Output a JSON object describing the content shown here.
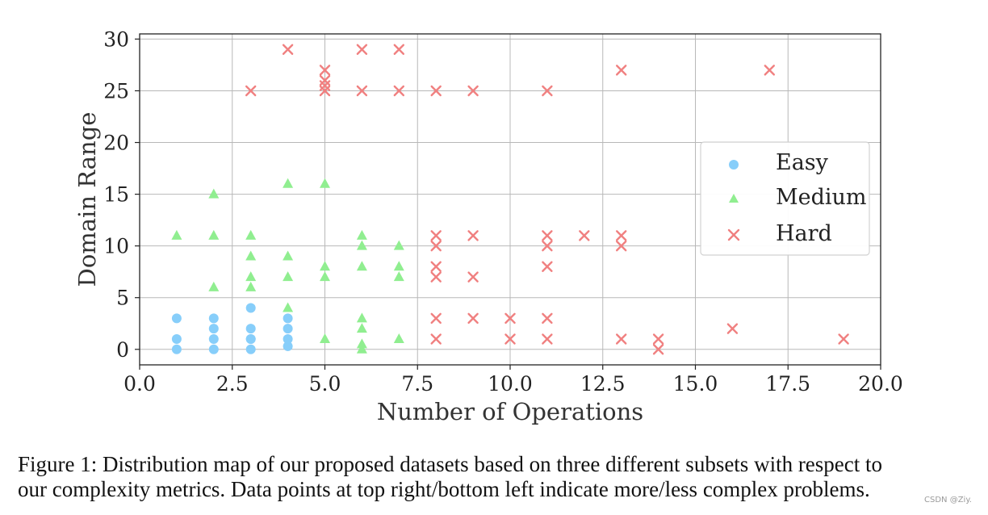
{
  "chart_data": {
    "type": "scatter",
    "xlabel": "Number of Operations",
    "ylabel": "Domain Range",
    "xlim": [
      0,
      20
    ],
    "ylim": [
      -1.5,
      30.5
    ],
    "xticks": [
      "0.0",
      "2.5",
      "5.0",
      "7.5",
      "10.0",
      "12.5",
      "15.0",
      "17.5",
      "20.0"
    ],
    "yticks": [
      "0",
      "5",
      "10",
      "15",
      "20",
      "25",
      "30"
    ],
    "grid": true,
    "legend_position": "center-right",
    "series": [
      {
        "name": "Easy",
        "marker": "circle",
        "color": "#87cefa",
        "points": [
          [
            1,
            0
          ],
          [
            1,
            1
          ],
          [
            1,
            3
          ],
          [
            2,
            0
          ],
          [
            2,
            1
          ],
          [
            2,
            2
          ],
          [
            2,
            3
          ],
          [
            3,
            0
          ],
          [
            3,
            1
          ],
          [
            3,
            1
          ],
          [
            3,
            2
          ],
          [
            3,
            4
          ],
          [
            4,
            0.3
          ],
          [
            4,
            1
          ],
          [
            4,
            2
          ],
          [
            4,
            3
          ]
        ]
      },
      {
        "name": "Medium",
        "marker": "triangle",
        "color": "#90ee90",
        "points": [
          [
            1,
            11
          ],
          [
            2,
            15
          ],
          [
            2,
            11
          ],
          [
            2,
            6
          ],
          [
            3,
            11
          ],
          [
            3,
            9
          ],
          [
            3,
            7
          ],
          [
            3,
            6
          ],
          [
            4,
            16
          ],
          [
            4,
            9
          ],
          [
            4,
            7
          ],
          [
            4,
            4
          ],
          [
            5,
            16
          ],
          [
            5,
            8
          ],
          [
            5,
            7
          ],
          [
            5,
            1
          ],
          [
            6,
            11
          ],
          [
            6,
            10
          ],
          [
            6,
            8
          ],
          [
            6,
            3
          ],
          [
            6,
            2
          ],
          [
            6,
            0.5
          ],
          [
            6,
            0
          ],
          [
            7,
            10
          ],
          [
            7,
            8
          ],
          [
            7,
            7
          ],
          [
            7,
            1
          ]
        ]
      },
      {
        "name": "Hard",
        "marker": "x",
        "color": "#f08080",
        "points": [
          [
            3,
            25
          ],
          [
            4,
            29
          ],
          [
            5,
            27
          ],
          [
            5,
            26
          ],
          [
            5,
            25.5
          ],
          [
            5,
            25
          ],
          [
            6,
            29
          ],
          [
            6,
            25
          ],
          [
            7,
            29
          ],
          [
            7,
            25
          ],
          [
            8,
            25
          ],
          [
            8,
            11
          ],
          [
            8,
            10
          ],
          [
            8,
            8
          ],
          [
            8,
            7
          ],
          [
            8,
            3
          ],
          [
            8,
            1
          ],
          [
            9,
            25
          ],
          [
            9,
            11
          ],
          [
            9,
            7
          ],
          [
            9,
            3
          ],
          [
            10,
            3
          ],
          [
            10,
            1
          ],
          [
            11,
            25
          ],
          [
            11,
            11
          ],
          [
            11,
            10
          ],
          [
            11,
            8
          ],
          [
            11,
            3
          ],
          [
            11,
            1
          ],
          [
            12,
            11
          ],
          [
            13,
            27
          ],
          [
            13,
            11
          ],
          [
            13,
            10
          ],
          [
            13,
            1
          ],
          [
            14,
            1
          ],
          [
            14,
            0
          ],
          [
            16,
            2
          ],
          [
            17,
            27
          ],
          [
            19,
            1
          ]
        ]
      }
    ]
  },
  "caption": {
    "line1": "Figure 1: Distribution map of our proposed datasets based on three different subsets with respect to",
    "line2": "our complexity metrics. Data points at top right/bottom left indicate more/less complex problems."
  },
  "watermark": "CSDN @Ziy."
}
